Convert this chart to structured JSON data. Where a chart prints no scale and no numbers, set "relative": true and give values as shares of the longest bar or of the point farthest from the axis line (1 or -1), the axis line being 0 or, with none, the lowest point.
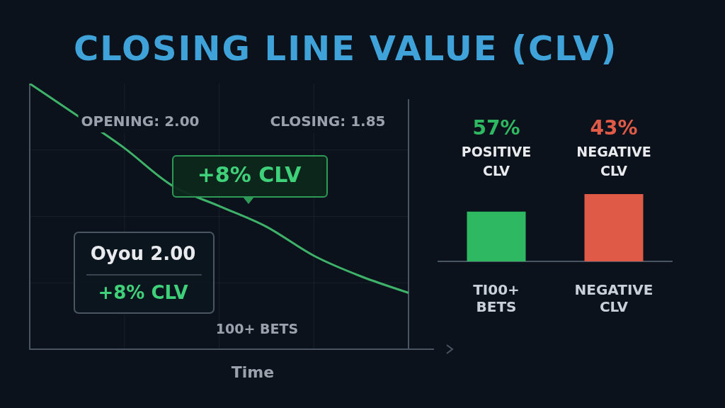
{
  "chart_data": [
    {
      "type": "line",
      "title": "CLOSING LINE VALUE (CLV)",
      "xlabel": "Time",
      "relative": true,
      "grid": true,
      "categories": [
        null,
        null,
        null,
        null,
        null,
        null,
        null,
        null,
        null
      ],
      "series": [
        {
          "color": "#3fb26a",
          "values": [
            1,
            0.88,
            0.757,
            0.617,
            0.539,
            0.461,
            0.352,
            0.274,
            0.212
          ]
        }
      ],
      "annotations": [
        "OPENING: 2.00",
        "CLOSING: 1.85",
        "+8% CLV",
        "Oyou 2.00",
        "+8% CLV",
        "100+ BETS"
      ]
    },
    {
      "type": "bar",
      "relative": true,
      "categories": [
        "TI00+ BETS",
        "NEGATIVE CLV"
      ],
      "values": [
        0.74,
        1
      ],
      "colors": [
        "#2fb862",
        "#e05a48"
      ],
      "annotations": [
        "57%",
        "POSITIVE CLV",
        "43%",
        "NEGATIVE CLV"
      ]
    }
  ]
}
